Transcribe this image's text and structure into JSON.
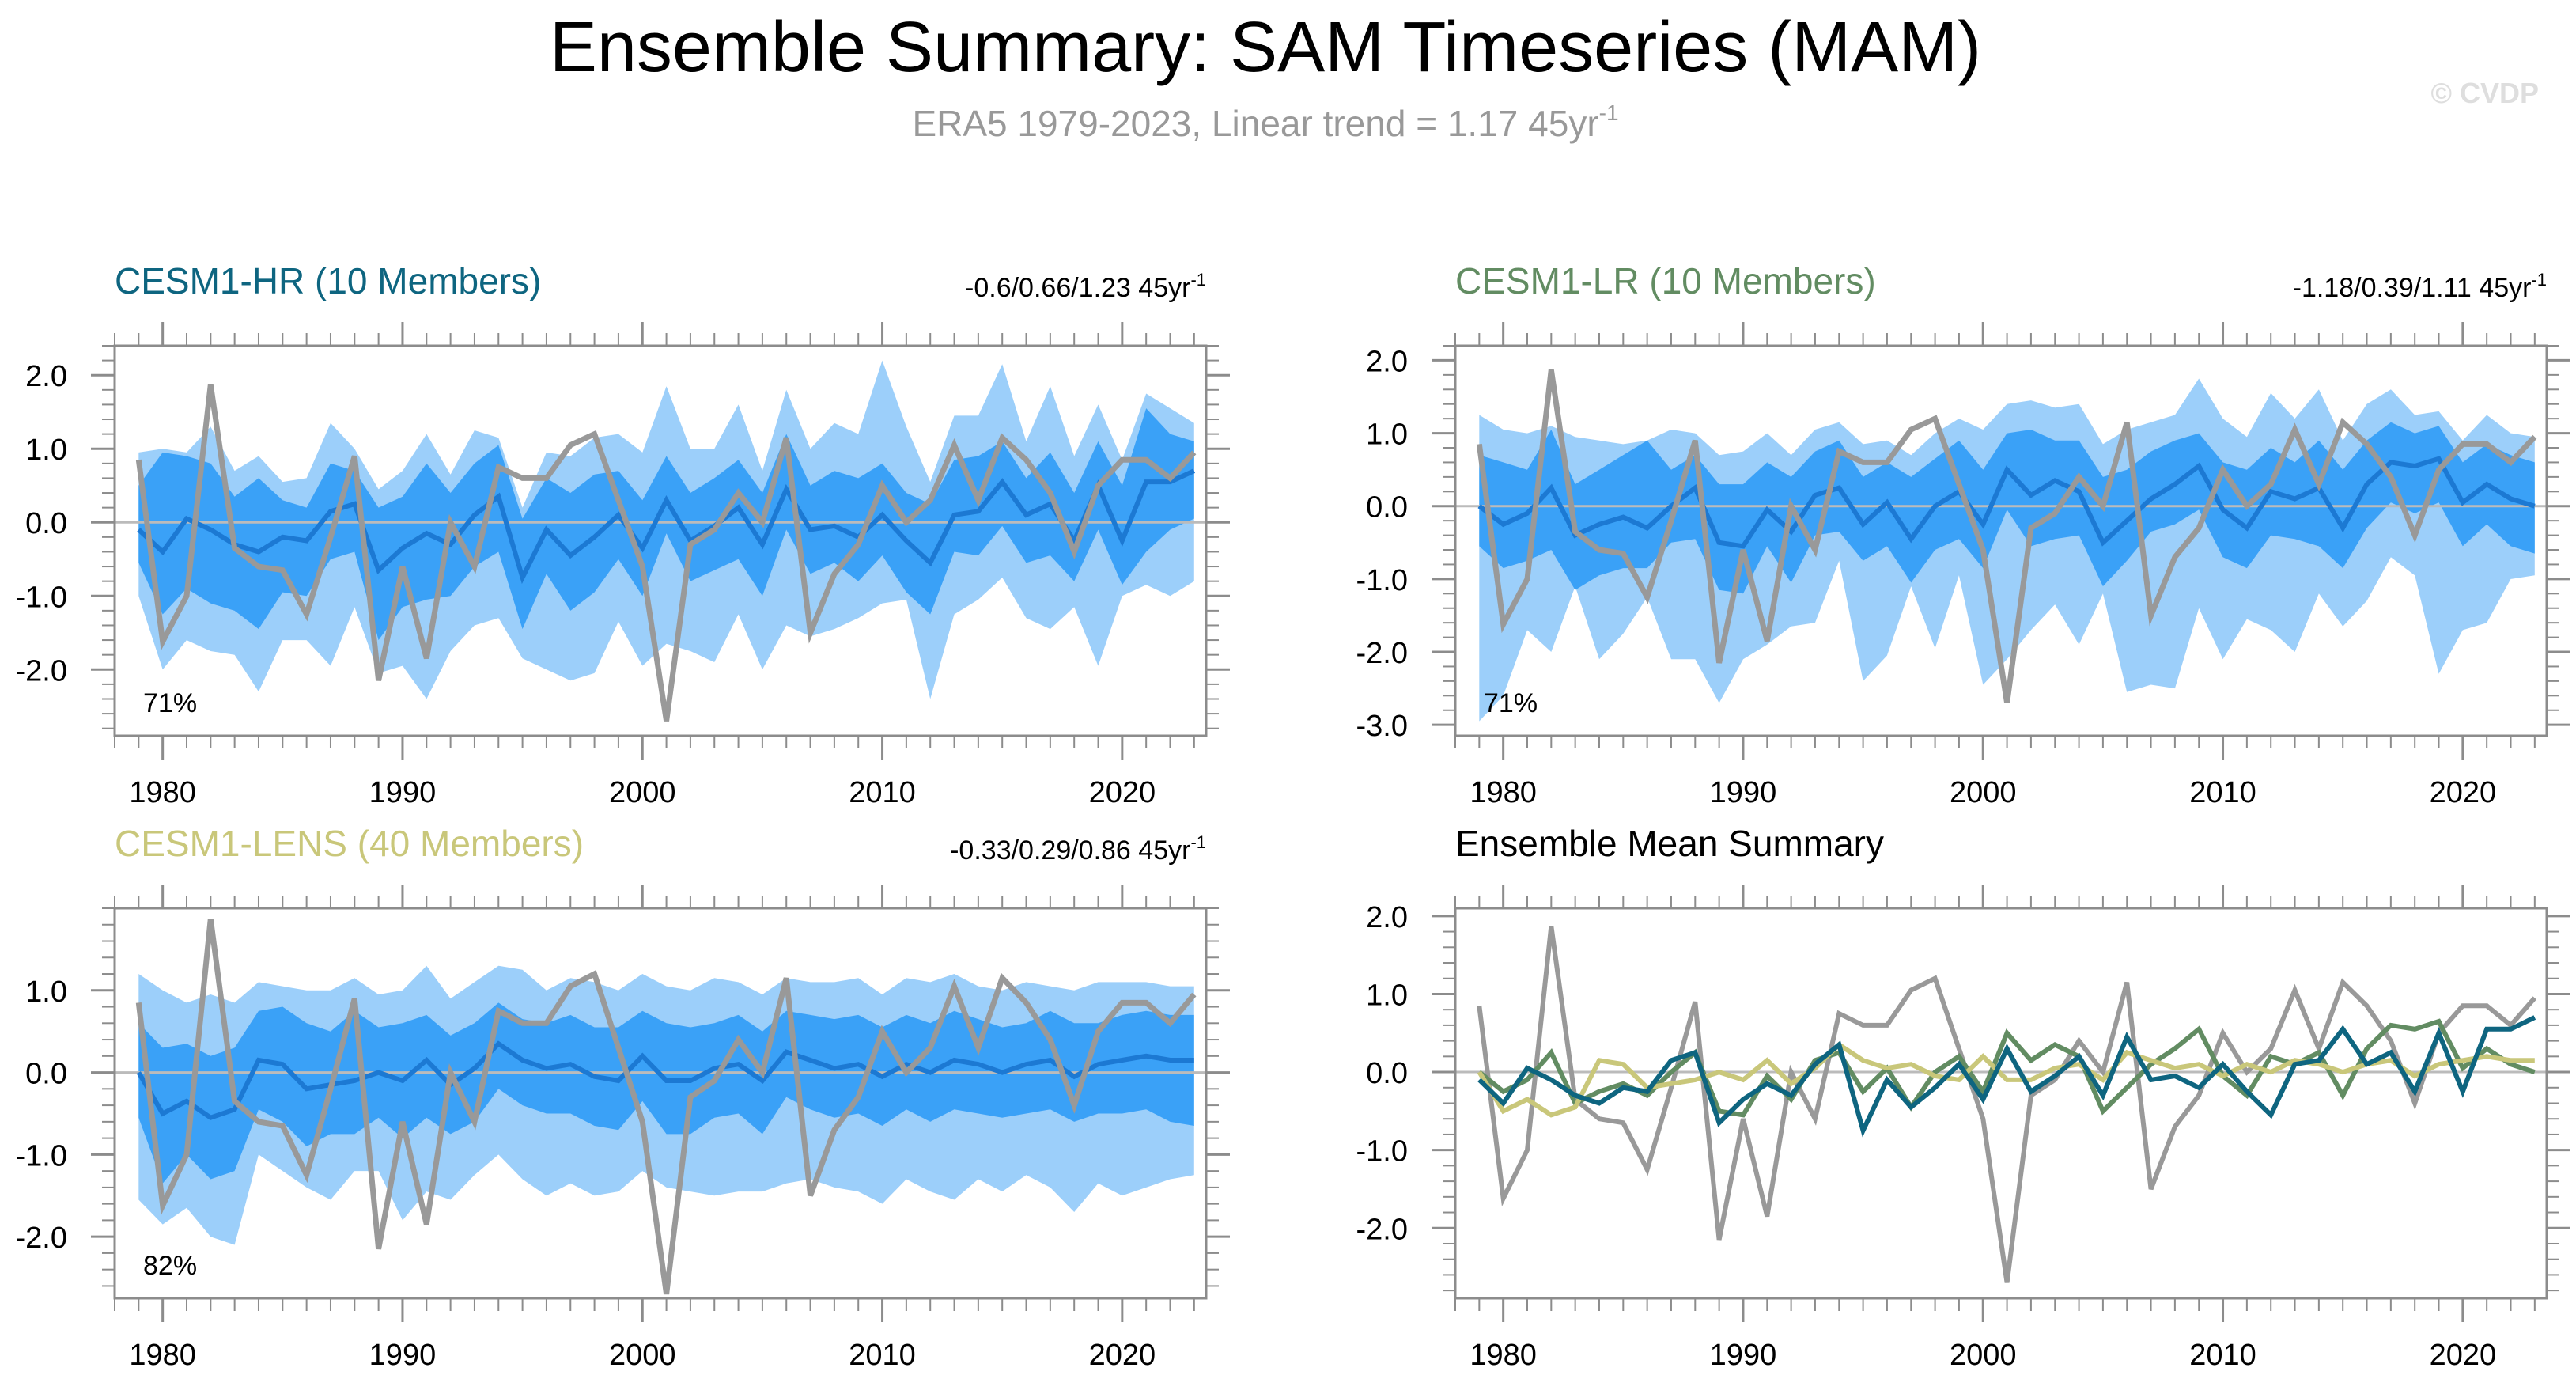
{
  "title": "Ensemble Summary: SAM Timeseries (MAM)",
  "subtitle_prefix": "ERA5 1979-2023, Linear trend = 1.17 45yr",
  "subtitle_sup": "-1",
  "watermark": "© CVDP",
  "colors": {
    "outer_band": "#9ccffa",
    "inner_band": "#3aa1f7",
    "ens_mean": "#1c79d3",
    "obs": "#999999",
    "hr": "#0e6580",
    "lr": "#628c62",
    "lens": "#c9c77a",
    "axis": "#8c8c8c",
    "zero_line": "#bbbbbb"
  },
  "chart_data": {
    "type": "line",
    "x_start": 1979,
    "obs": [
      0.85,
      -1.62,
      -1.0,
      1.87,
      -0.35,
      -0.6,
      -0.65,
      -1.25,
      -0.2,
      0.9,
      -2.15,
      -0.6,
      -1.85,
      0.0,
      -0.6,
      0.75,
      0.6,
      0.6,
      1.05,
      1.2,
      0.3,
      -0.6,
      -2.7,
      -0.3,
      -0.1,
      0.4,
      0.0,
      1.15,
      -1.5,
      -0.7,
      -0.3,
      0.5,
      0.0,
      0.3,
      1.05,
      0.3,
      1.15,
      0.85,
      0.4,
      -0.4,
      0.5,
      0.85,
      0.85,
      0.6,
      0.95
    ],
    "panels": [
      {
        "id": "hr",
        "title": "CESM1-HR (10 Members)",
        "title_color": "#0e6580",
        "trend_prefix": "-0.6/0.66/1.23 45yr",
        "trend_sup": "-1",
        "percent": "71%",
        "ylim": [
          -2.9,
          2.4
        ],
        "yticks": [
          -2.0,
          -1.0,
          0.0,
          1.0,
          2.0
        ],
        "ytick_labels": [
          "-2.0",
          "-1.0",
          "0.0",
          "1.0",
          "2.0"
        ],
        "xlim": [
          1978,
          2023.5
        ],
        "xticks": [
          1980,
          1990,
          2000,
          2010,
          2020
        ],
        "xtick_labels": [
          "1980",
          "1990",
          "2000",
          "2010",
          "2020"
        ],
        "mean": [
          -0.1,
          -0.4,
          0.05,
          -0.1,
          -0.3,
          -0.4,
          -0.2,
          -0.25,
          0.15,
          0.25,
          -0.65,
          -0.35,
          -0.15,
          -0.3,
          0.1,
          0.35,
          -0.75,
          -0.1,
          -0.45,
          -0.2,
          0.1,
          -0.35,
          0.3,
          -0.25,
          -0.05,
          0.2,
          -0.3,
          0.45,
          -0.1,
          -0.05,
          -0.2,
          0.1,
          -0.25,
          -0.55,
          0.1,
          0.15,
          0.55,
          0.1,
          0.25,
          -0.25,
          0.5,
          -0.25,
          0.55,
          0.55,
          0.7
        ],
        "inner_upper": [
          0.5,
          0.95,
          0.9,
          0.8,
          0.35,
          0.6,
          0.3,
          0.2,
          0.8,
          0.7,
          0.2,
          0.35,
          0.8,
          0.4,
          0.8,
          1.05,
          0.05,
          0.6,
          0.4,
          0.65,
          0.7,
          0.3,
          0.9,
          0.4,
          0.6,
          0.85,
          0.4,
          1.2,
          0.5,
          0.7,
          0.6,
          0.8,
          0.4,
          0.25,
          0.85,
          0.9,
          1.1,
          0.6,
          0.95,
          0.4,
          1.1,
          0.5,
          1.55,
          1.2,
          1.1
        ],
        "inner_lower": [
          -0.55,
          -1.25,
          -0.9,
          -1.1,
          -1.2,
          -1.45,
          -0.95,
          -1.0,
          -0.5,
          -0.4,
          -1.6,
          -1.15,
          -1.05,
          -1.0,
          -0.6,
          -0.4,
          -1.45,
          -0.7,
          -1.2,
          -0.95,
          -0.5,
          -1.0,
          -0.15,
          -0.8,
          -0.65,
          -0.5,
          -1.0,
          -0.1,
          -0.7,
          -0.55,
          -0.8,
          -0.45,
          -0.95,
          -1.25,
          -0.4,
          -0.45,
          -0.05,
          -0.55,
          -0.45,
          -0.8,
          -0.1,
          -0.85,
          -0.4,
          -0.1,
          0.05
        ],
        "outer_upper": [
          0.95,
          1.0,
          0.95,
          1.3,
          0.7,
          0.9,
          0.55,
          0.6,
          1.35,
          1.0,
          0.45,
          0.7,
          1.2,
          0.65,
          1.25,
          1.15,
          0.2,
          0.95,
          0.9,
          1.15,
          1.2,
          0.95,
          1.85,
          1.0,
          1.0,
          1.6,
          0.7,
          1.8,
          1.0,
          1.35,
          1.2,
          2.2,
          1.3,
          0.55,
          1.45,
          1.45,
          2.15,
          1.1,
          1.85,
          0.9,
          1.6,
          0.85,
          1.75,
          1.55,
          1.35
        ],
        "outer_lower": [
          -1.0,
          -2.0,
          -1.6,
          -1.75,
          -1.8,
          -2.3,
          -1.6,
          -1.6,
          -1.95,
          -1.15,
          -2.05,
          -1.95,
          -2.4,
          -1.75,
          -1.4,
          -1.3,
          -1.85,
          -2.0,
          -2.15,
          -2.05,
          -1.35,
          -1.95,
          -1.65,
          -1.75,
          -1.9,
          -1.25,
          -2.0,
          -1.4,
          -1.55,
          -1.45,
          -1.3,
          -1.1,
          -1.05,
          -2.4,
          -1.25,
          -1.05,
          -0.75,
          -1.3,
          -1.45,
          -1.15,
          -1.95,
          -1.0,
          -0.85,
          -1.0,
          -0.8
        ]
      },
      {
        "id": "lr",
        "title": "CESM1-LR (10 Members)",
        "title_color": "#628c62",
        "trend_prefix": "-1.18/0.39/1.11 45yr",
        "trend_sup": "-1",
        "percent": "71%",
        "ylim": [
          -3.15,
          2.2
        ],
        "yticks": [
          -3.0,
          -2.0,
          -1.0,
          0.0,
          1.0,
          2.0
        ],
        "ytick_labels": [
          "-3.0",
          "-2.0",
          "-1.0",
          "0.0",
          "1.0",
          "2.0"
        ],
        "xlim": [
          1978,
          2023.5
        ],
        "xticks": [
          1980,
          1990,
          2000,
          2010,
          2020
        ],
        "xtick_labels": [
          "1980",
          "1990",
          "2000",
          "2010",
          "2020"
        ],
        "mean": [
          0.0,
          -0.25,
          -0.1,
          0.25,
          -0.4,
          -0.25,
          -0.15,
          -0.3,
          0.0,
          0.25,
          -0.5,
          -0.55,
          -0.05,
          -0.35,
          0.15,
          0.25,
          -0.25,
          0.05,
          -0.45,
          0.0,
          0.2,
          -0.25,
          0.5,
          0.15,
          0.35,
          0.2,
          -0.5,
          -0.2,
          0.1,
          0.3,
          0.55,
          -0.05,
          -0.3,
          0.2,
          0.1,
          0.25,
          -0.3,
          0.3,
          0.6,
          0.55,
          0.65,
          0.05,
          0.3,
          0.1,
          0.0
        ],
        "inner_upper": [
          0.7,
          0.6,
          0.5,
          1.05,
          0.3,
          0.5,
          0.7,
          0.9,
          0.5,
          0.7,
          0.3,
          0.3,
          0.6,
          0.4,
          0.75,
          0.9,
          0.4,
          0.6,
          0.4,
          0.65,
          0.9,
          0.5,
          1.0,
          1.05,
          0.9,
          0.9,
          0.4,
          0.5,
          0.75,
          0.9,
          1.0,
          0.6,
          0.5,
          0.8,
          0.6,
          0.9,
          0.5,
          0.9,
          1.15,
          1.0,
          1.1,
          0.6,
          0.85,
          0.7,
          0.6
        ],
        "inner_lower": [
          -0.55,
          -0.85,
          -0.75,
          -0.6,
          -1.15,
          -0.95,
          -0.85,
          -0.85,
          -0.5,
          -0.45,
          -1.15,
          -1.2,
          -0.55,
          -1.05,
          -0.4,
          -0.35,
          -0.75,
          -0.55,
          -1.05,
          -0.6,
          -0.45,
          -0.85,
          -0.05,
          -0.55,
          -0.45,
          -0.4,
          -1.1,
          -0.75,
          -0.35,
          -0.25,
          -0.05,
          -0.7,
          -0.85,
          -0.4,
          -0.45,
          -0.55,
          -0.85,
          -0.3,
          0.05,
          -0.1,
          0.05,
          -0.55,
          -0.25,
          -0.55,
          -0.65
        ],
        "outer_upper": [
          1.25,
          1.05,
          1.0,
          1.1,
          0.95,
          0.9,
          0.85,
          0.9,
          1.05,
          1.0,
          0.7,
          0.75,
          1.0,
          0.7,
          1.05,
          1.15,
          0.85,
          0.9,
          0.7,
          1.0,
          1.2,
          1.05,
          1.4,
          1.45,
          1.35,
          1.4,
          0.85,
          1.05,
          1.15,
          1.25,
          1.75,
          1.2,
          0.95,
          1.55,
          1.2,
          1.6,
          0.9,
          1.4,
          1.6,
          1.25,
          1.3,
          0.9,
          1.25,
          1.0,
          0.95
        ],
        "outer_lower": [
          -2.95,
          -2.6,
          -1.7,
          -2.0,
          -1.1,
          -2.1,
          -1.75,
          -1.25,
          -2.1,
          -2.1,
          -2.7,
          -2.1,
          -1.9,
          -1.65,
          -1.6,
          -0.75,
          -2.4,
          -2.05,
          -1.1,
          -1.95,
          -0.95,
          -2.45,
          -2.1,
          -1.7,
          -1.35,
          -1.9,
          -1.2,
          -2.55,
          -2.45,
          -2.5,
          -1.4,
          -2.1,
          -1.55,
          -1.7,
          -2.0,
          -1.2,
          -1.65,
          -1.3,
          -0.7,
          -0.95,
          -2.3,
          -1.7,
          -1.6,
          -1.0,
          -0.95
        ]
      },
      {
        "id": "lens",
        "title": "CESM1-LENS (40 Members)",
        "title_color": "#c9c77a",
        "trend_prefix": "-0.33/0.29/0.86 45yr",
        "trend_sup": "-1",
        "percent": "82%",
        "ylim": [
          -2.75,
          2.0
        ],
        "yticks": [
          -2.0,
          -1.0,
          0.0,
          1.0
        ],
        "ytick_labels": [
          "-2.0",
          "-1.0",
          "0.0",
          "1.0"
        ],
        "xlim": [
          1978,
          2023.5
        ],
        "xticks": [
          1980,
          1990,
          2000,
          2010,
          2020
        ],
        "xtick_labels": [
          "1980",
          "1990",
          "2000",
          "2010",
          "2020"
        ],
        "mean": [
          0.0,
          -0.5,
          -0.35,
          -0.55,
          -0.45,
          0.15,
          0.1,
          -0.2,
          -0.15,
          -0.1,
          0.0,
          -0.1,
          0.15,
          -0.15,
          0.05,
          0.35,
          0.15,
          0.05,
          0.1,
          -0.05,
          -0.1,
          0.2,
          -0.1,
          -0.1,
          0.05,
          0.1,
          -0.1,
          0.25,
          0.15,
          0.05,
          0.1,
          -0.05,
          0.1,
          0.0,
          0.15,
          0.1,
          0.0,
          0.1,
          0.15,
          -0.05,
          0.1,
          0.15,
          0.2,
          0.15,
          0.15
        ],
        "inner_upper": [
          0.6,
          0.3,
          0.35,
          0.2,
          0.3,
          0.75,
          0.8,
          0.6,
          0.5,
          0.75,
          0.55,
          0.6,
          0.7,
          0.45,
          0.6,
          0.85,
          0.65,
          0.6,
          0.7,
          0.55,
          0.55,
          0.75,
          0.6,
          0.55,
          0.6,
          0.7,
          0.5,
          0.75,
          0.7,
          0.65,
          0.7,
          0.55,
          0.7,
          0.6,
          0.75,
          0.65,
          0.55,
          0.6,
          0.75,
          0.6,
          0.6,
          0.7,
          0.75,
          0.7,
          0.7
        ],
        "inner_lower": [
          -0.55,
          -1.35,
          -1.0,
          -1.3,
          -1.2,
          -0.45,
          -0.6,
          -0.9,
          -0.75,
          -0.75,
          -0.55,
          -0.8,
          -0.55,
          -0.75,
          -0.6,
          -0.2,
          -0.4,
          -0.5,
          -0.5,
          -0.65,
          -0.7,
          -0.35,
          -0.75,
          -0.75,
          -0.55,
          -0.5,
          -0.75,
          -0.3,
          -0.45,
          -0.55,
          -0.5,
          -0.65,
          -0.45,
          -0.6,
          -0.45,
          -0.5,
          -0.55,
          -0.5,
          -0.45,
          -0.6,
          -0.5,
          -0.5,
          -0.45,
          -0.6,
          -0.65
        ],
        "outer_upper": [
          1.2,
          1.0,
          0.85,
          0.95,
          0.85,
          1.1,
          1.05,
          1.0,
          1.0,
          1.15,
          0.95,
          1.0,
          1.3,
          0.9,
          1.1,
          1.3,
          1.25,
          1.0,
          1.15,
          1.1,
          1.0,
          1.2,
          1.05,
          1.0,
          1.15,
          1.1,
          0.95,
          1.15,
          1.1,
          1.1,
          1.15,
          0.95,
          1.15,
          1.1,
          1.2,
          1.05,
          1.0,
          1.1,
          1.05,
          1.0,
          1.1,
          1.1,
          1.1,
          1.05,
          1.05
        ],
        "outer_lower": [
          -1.55,
          -1.85,
          -1.65,
          -2.0,
          -2.1,
          -1.0,
          -1.2,
          -1.4,
          -1.55,
          -1.2,
          -1.2,
          -1.8,
          -1.45,
          -1.55,
          -1.25,
          -1.0,
          -1.3,
          -1.5,
          -1.35,
          -1.5,
          -1.45,
          -1.2,
          -1.4,
          -1.45,
          -1.5,
          -1.45,
          -1.45,
          -1.35,
          -1.3,
          -1.4,
          -1.45,
          -1.6,
          -1.3,
          -1.45,
          -1.55,
          -1.3,
          -1.45,
          -1.25,
          -1.4,
          -1.7,
          -1.35,
          -1.5,
          -1.4,
          -1.3,
          -1.25
        ]
      }
    ],
    "summary": {
      "title": "Ensemble Mean Summary",
      "ylim": [
        -2.9,
        2.1
      ],
      "yticks": [
        -2.0,
        -1.0,
        0.0,
        1.0,
        2.0
      ],
      "ytick_labels": [
        "-2.0",
        "-1.0",
        "0.0",
        "1.0",
        "2.0"
      ],
      "xlim": [
        1978,
        2023.5
      ],
      "xticks": [
        1980,
        1990,
        2000,
        2010,
        2020
      ],
      "xtick_labels": [
        "1980",
        "1990",
        "2000",
        "2010",
        "2020"
      ]
    }
  }
}
